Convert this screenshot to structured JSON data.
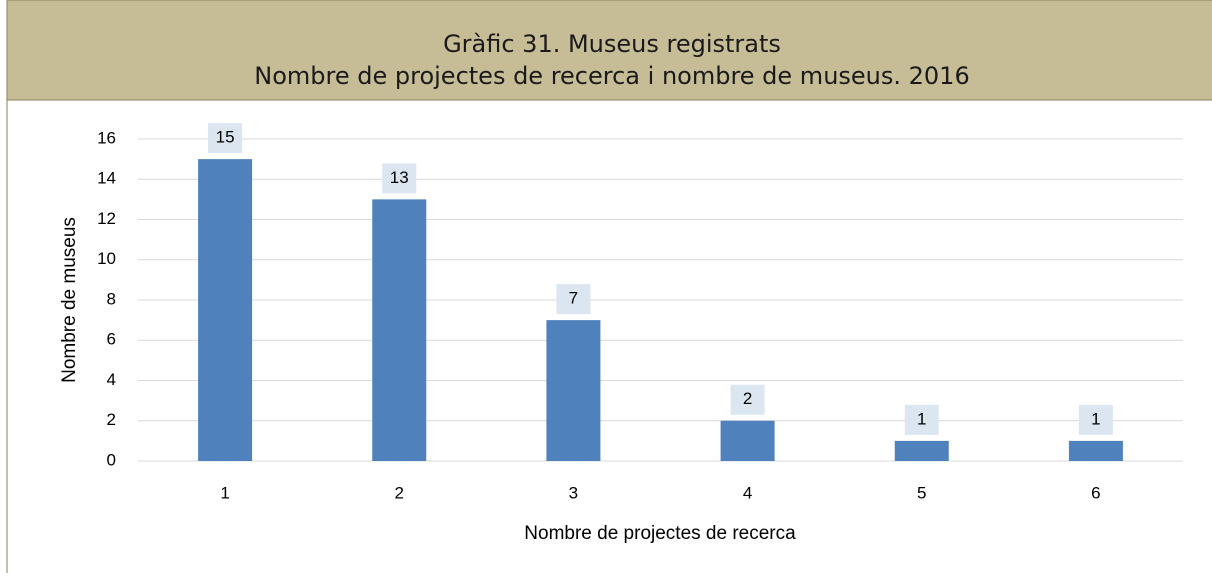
{
  "chart_data": {
    "type": "bar",
    "title": "Gràfic 31. Museus registrats",
    "subtitle": "Nombre de projectes de recerca i nombre de museus. 2016",
    "x_label": "Nombre de projectes de recerca",
    "y_label": "Nombre de museus",
    "categories": [
      "1",
      "2",
      "3",
      "4",
      "5",
      "6"
    ],
    "values": [
      15,
      13,
      7,
      2,
      1,
      1
    ],
    "color": "#4f81bd",
    "ylim": [
      0,
      16
    ],
    "yticks": [
      0,
      2,
      4,
      6,
      8,
      10,
      12,
      14,
      16
    ],
    "grid": true
  }
}
